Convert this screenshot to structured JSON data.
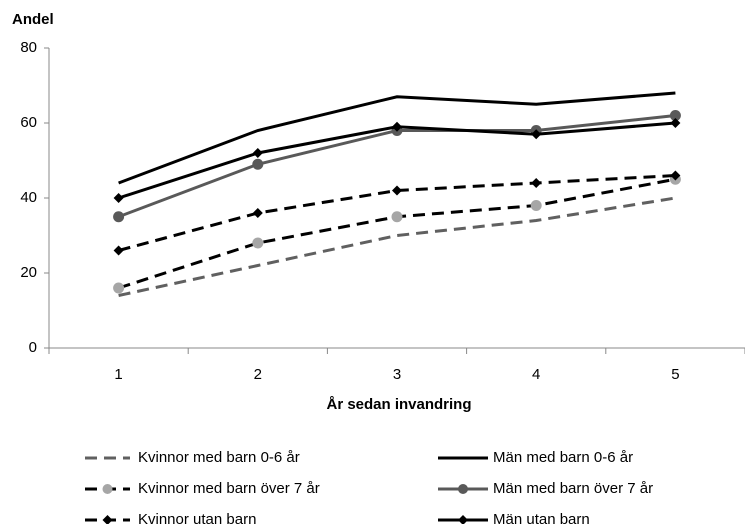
{
  "chart_data": {
    "type": "line",
    "y_label": "Andel",
    "x_label": "År sedan invandring",
    "categories": [
      "1",
      "2",
      "3",
      "4",
      "5"
    ],
    "ylim": [
      0,
      80
    ],
    "yticks": [
      0,
      20,
      40,
      60,
      80
    ],
    "grid": false,
    "series": [
      {
        "name": "Kvinnor med barn 0-6 år",
        "color": "#606060",
        "dash": true,
        "marker": null,
        "values": [
          14,
          22,
          30,
          34,
          40
        ]
      },
      {
        "name": "Män med barn 0-6 år",
        "color": "#000000",
        "dash": false,
        "marker": null,
        "values": [
          44,
          58,
          67,
          65,
          68
        ]
      },
      {
        "name": "Kvinnor med barn över 7 år",
        "color": "#000000",
        "dash": true,
        "marker": "circle",
        "marker_color": "#a6a6a6",
        "values": [
          16,
          28,
          35,
          38,
          45
        ]
      },
      {
        "name": "Män med barn över 7 år",
        "color": "#595959",
        "dash": false,
        "marker": "circle",
        "marker_color": "#595959",
        "values": [
          35,
          49,
          58,
          58,
          62
        ]
      },
      {
        "name": "Kvinnor utan barn",
        "color": "#000000",
        "dash": true,
        "marker": "diamond",
        "marker_color": "#000000",
        "values": [
          26,
          36,
          42,
          44,
          46
        ]
      },
      {
        "name": "Män utan barn",
        "color": "#000000",
        "dash": false,
        "marker": "diamond",
        "marker_color": "#000000",
        "values": [
          40,
          52,
          59,
          57,
          60
        ]
      }
    ]
  }
}
